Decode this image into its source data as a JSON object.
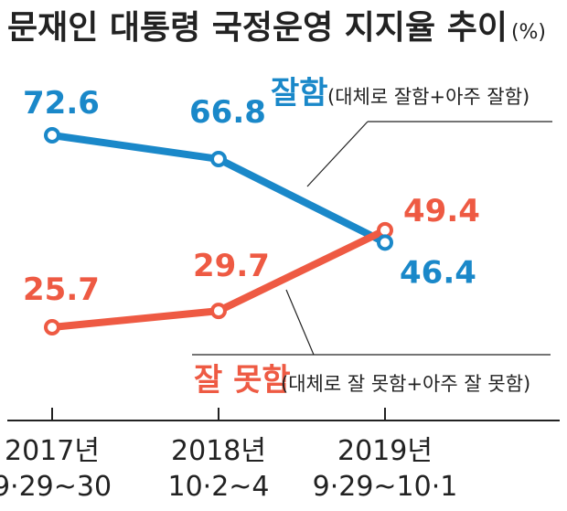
{
  "title": "문재인 대통령 국정운영 지지율 추이",
  "unit": "(%)",
  "colors": {
    "positive": "#1a88c9",
    "negative": "#ee5a43",
    "axis": "#222222",
    "leader": "#222222"
  },
  "chart_data": {
    "type": "line",
    "title": "문재인 대통령 국정운영 지지율 추이",
    "unit": "(%)",
    "categories": [
      {
        "year": "2017년",
        "date": "9·29~30"
      },
      {
        "year": "2018년",
        "date": "10·2~4"
      },
      {
        "year": "2019년",
        "date": "9·29~10·1"
      }
    ],
    "series": [
      {
        "name": "잘함",
        "detail": "(대체로 잘함+아주 잘함)",
        "color": "#1a88c9",
        "values": [
          72.6,
          66.8,
          46.4
        ],
        "labels": [
          "72.6",
          "66.8",
          "46.4"
        ]
      },
      {
        "name": "잘 못함",
        "detail": "(대체로 잘 못함+아주 잘 못함)",
        "color": "#ee5a43",
        "values": [
          25.7,
          29.7,
          49.4
        ],
        "labels": [
          "25.7",
          "29.7",
          "49.4"
        ]
      }
    ],
    "ylim": [
      20,
      80
    ],
    "grid": false,
    "legend": "inline"
  }
}
